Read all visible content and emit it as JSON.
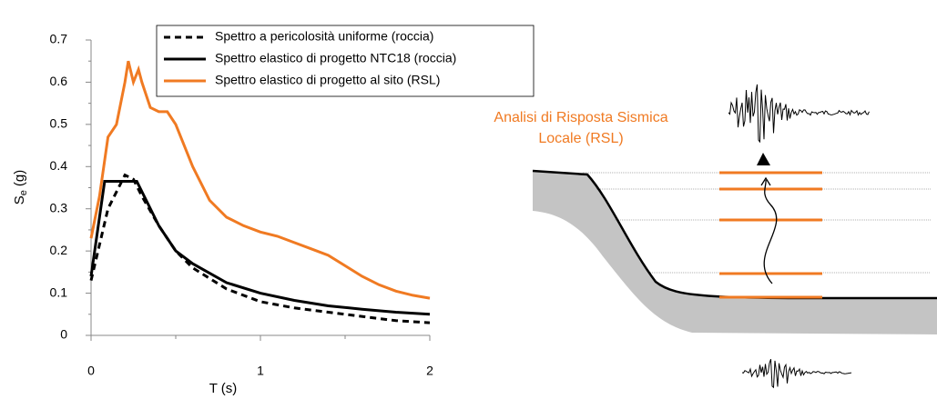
{
  "chart_data": {
    "type": "line",
    "x_label": "T (s)",
    "y_label": {
      "main": "S",
      "sub": "e",
      "unit": "(g)"
    },
    "xlim": [
      0,
      2
    ],
    "xticks": [
      0,
      1,
      2
    ],
    "xminorticks": [
      0.5,
      1.5
    ],
    "ylim": [
      0,
      0.7
    ],
    "yticks": [
      0,
      0.1,
      0.2,
      0.3,
      0.4,
      0.5,
      0.6,
      0.7
    ],
    "yminorticks": [
      0.05,
      0.15,
      0.25,
      0.35,
      0.45,
      0.55,
      0.65
    ],
    "grid": false,
    "legend": "top",
    "series": [
      {
        "name": "Spettro a pericolosità uniforme (roccia)",
        "color": "#000000",
        "dash": true,
        "x": [
          0,
          0.1,
          0.2,
          0.25,
          0.3,
          0.4,
          0.5,
          0.6,
          0.8,
          1.0,
          1.2,
          1.5,
          1.8,
          2.0
        ],
        "values": [
          0.13,
          0.3,
          0.38,
          0.37,
          0.33,
          0.26,
          0.2,
          0.16,
          0.11,
          0.08,
          0.065,
          0.05,
          0.035,
          0.03
        ]
      },
      {
        "name": "Spettro elastico di progetto NTC18 (roccia)",
        "color": "#000000",
        "dash": false,
        "x": [
          0,
          0.08,
          0.27,
          0.4,
          0.5,
          0.6,
          0.8,
          1.0,
          1.2,
          1.4,
          1.6,
          1.8,
          2.0
        ],
        "values": [
          0.14,
          0.365,
          0.365,
          0.26,
          0.2,
          0.17,
          0.125,
          0.1,
          0.083,
          0.07,
          0.062,
          0.055,
          0.05
        ]
      },
      {
        "name": "Spettro elastico di progetto al sito (RSL)",
        "color": "#f07a22",
        "dash": false,
        "x": [
          0,
          0.05,
          0.1,
          0.15,
          0.2,
          0.22,
          0.25,
          0.28,
          0.3,
          0.35,
          0.4,
          0.45,
          0.5,
          0.6,
          0.7,
          0.8,
          0.9,
          1.0,
          1.1,
          1.2,
          1.3,
          1.4,
          1.5,
          1.6,
          1.7,
          1.8,
          1.9,
          2.0
        ],
        "values": [
          0.23,
          0.33,
          0.47,
          0.5,
          0.6,
          0.65,
          0.6,
          0.63,
          0.6,
          0.54,
          0.53,
          0.53,
          0.5,
          0.4,
          0.32,
          0.28,
          0.26,
          0.245,
          0.235,
          0.22,
          0.205,
          0.19,
          0.165,
          0.14,
          0.12,
          0.105,
          0.095,
          0.088
        ]
      }
    ],
    "annotation": {
      "lines": [
        "Analisi di Risposta Sismica",
        "Locale (RSL)"
      ],
      "color": "#f07a22"
    }
  }
}
